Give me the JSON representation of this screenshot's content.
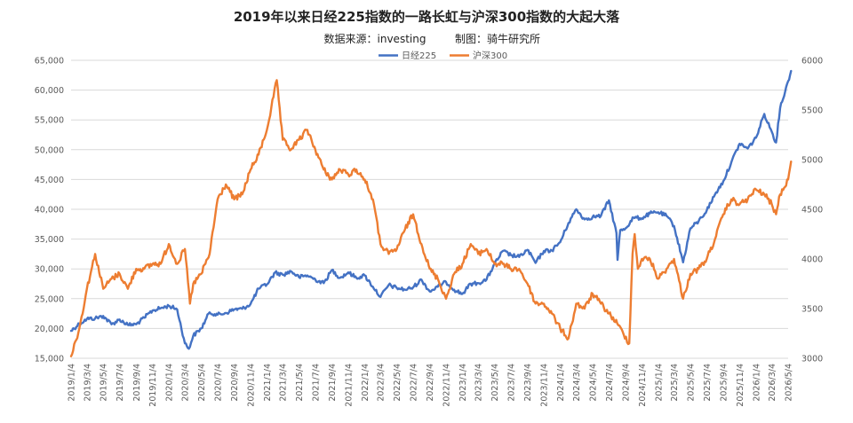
{
  "chart_data": {
    "type": "line",
    "title": "2019年以来日经225指数的一路长虹与沪深300指数的大起大落",
    "subtitle_source": "数据来源：investing",
    "subtitle_credit": "制图：骑牛研究所",
    "legend_position": "top",
    "grid": true,
    "y_left": {
      "min": 15000,
      "max": 65000,
      "ticks": [
        15000,
        20000,
        25000,
        30000,
        35000,
        40000,
        45000,
        50000,
        55000,
        60000,
        65000
      ],
      "tick_labels": [
        "15,000",
        "20,000",
        "25,000",
        "30,000",
        "35,000",
        "40,000",
        "45,000",
        "50,000",
        "55,000",
        "60,000",
        "65,000"
      ]
    },
    "y_right": {
      "min": 3000,
      "max": 6000,
      "ticks": [
        3000,
        3500,
        4000,
        4500,
        5000,
        5500,
        6000
      ],
      "tick_labels": [
        "3000",
        "3500",
        "4000",
        "4500",
        "5000",
        "5500",
        "6000"
      ]
    },
    "x_labels": [
      "2019/1/4",
      "2019/3/4",
      "2019/5/4",
      "2019/7/4",
      "2019/9/4",
      "2019/11/4",
      "2020/1/4",
      "2020/3/4",
      "2020/5/4",
      "2020/7/4",
      "2020/9/4",
      "2020/11/4",
      "2021/1/4",
      "2021/3/4",
      "2021/5/4",
      "2021/7/4",
      "2021/9/4",
      "2021/11/4",
      "2022/1/4",
      "2022/3/4",
      "2022/5/4",
      "2022/7/4",
      "2022/9/4",
      "2022/11/4",
      "2023/1/4",
      "2023/3/4",
      "2023/5/4",
      "2023/7/4",
      "2023/9/4",
      "2023/11/4",
      "2024/1/4",
      "2024/3/4",
      "2024/5/4",
      "2024/7/4",
      "2024/9/4",
      "2024/11/4",
      "2025/1/4",
      "2025/3/4",
      "2025/5/4",
      "2025/7/4",
      "2025/9/4",
      "2025/11/4",
      "2026/1/4",
      "2026/3/4",
      "2026/5/4"
    ],
    "series": [
      {
        "name": "日经225",
        "axis": "left",
        "color": "#4472C4",
        "points": [
          [
            "2019/1/4",
            19600
          ],
          [
            "2019/2/4",
            20800
          ],
          [
            "2019/3/4",
            21600
          ],
          [
            "2019/4/4",
            21700
          ],
          [
            "2019/5/4",
            22100
          ],
          [
            "2019/6/4",
            20700
          ],
          [
            "2019/7/4",
            21500
          ],
          [
            "2019/8/4",
            20600
          ],
          [
            "2019/9/4",
            20700
          ],
          [
            "2019/10/4",
            21800
          ],
          [
            "2019/11/4",
            23000
          ],
          [
            "2019/12/4",
            23400
          ],
          [
            "2020/1/4",
            23800
          ],
          [
            "2020/2/4",
            23200
          ],
          [
            "2020/3/4",
            17500
          ],
          [
            "2020/3/19",
            16600
          ],
          [
            "2020/4/4",
            18800
          ],
          [
            "2020/5/4",
            20000
          ],
          [
            "2020/6/4",
            22700
          ],
          [
            "2020/7/4",
            22300
          ],
          [
            "2020/8/4",
            22600
          ],
          [
            "2020/9/4",
            23200
          ],
          [
            "2020/10/4",
            23300
          ],
          [
            "2020/11/4",
            24100
          ],
          [
            "2020/12/4",
            26700
          ],
          [
            "2021/1/4",
            27400
          ],
          [
            "2021/2/4",
            29400
          ],
          [
            "2021/3/4",
            29000
          ],
          [
            "2021/4/4",
            29600
          ],
          [
            "2021/5/4",
            28600
          ],
          [
            "2021/6/4",
            28900
          ],
          [
            "2021/7/4",
            28200
          ],
          [
            "2021/8/4",
            27600
          ],
          [
            "2021/9/4",
            29800
          ],
          [
            "2021/10/4",
            28500
          ],
          [
            "2021/11/4",
            29400
          ],
          [
            "2021/12/4",
            28500
          ],
          [
            "2022/1/4",
            28900
          ],
          [
            "2022/2/4",
            27000
          ],
          [
            "2022/3/4",
            25300
          ],
          [
            "2022/4/4",
            27300
          ],
          [
            "2022/5/4",
            26800
          ],
          [
            "2022/6/4",
            26500
          ],
          [
            "2022/7/4",
            26900
          ],
          [
            "2022/8/4",
            28200
          ],
          [
            "2022/9/4",
            26200
          ],
          [
            "2022/10/4",
            27000
          ],
          [
            "2022/11/4",
            27800
          ],
          [
            "2022/12/4",
            26500
          ],
          [
            "2023/1/4",
            25800
          ],
          [
            "2023/2/4",
            27500
          ],
          [
            "2023/3/4",
            27600
          ],
          [
            "2023/4/4",
            28200
          ],
          [
            "2023/5/4",
            30800
          ],
          [
            "2023/6/4",
            33000
          ],
          [
            "2023/7/4",
            32300
          ],
          [
            "2023/8/4",
            32000
          ],
          [
            "2023/9/4",
            33200
          ],
          [
            "2023/10/4",
            31000
          ],
          [
            "2023/11/4",
            33000
          ],
          [
            "2023/12/4",
            33100
          ],
          [
            "2024/1/4",
            34500
          ],
          [
            "2024/2/4",
            37700
          ],
          [
            "2024/3/4",
            40000
          ],
          [
            "2024/4/4",
            38300
          ],
          [
            "2024/5/4",
            38700
          ],
          [
            "2024/6/4",
            38900
          ],
          [
            "2024/7/4",
            41500
          ],
          [
            "2024/8/1",
            36000
          ],
          [
            "2024/8/5",
            31500
          ],
          [
            "2024/8/15",
            36500
          ],
          [
            "2024/9/4",
            36800
          ],
          [
            "2024/10/4",
            38600
          ],
          [
            "2024/11/4",
            38500
          ],
          [
            "2024/12/4",
            39300
          ],
          [
            "2025/1/4",
            39500
          ],
          [
            "2025/2/4",
            38900
          ],
          [
            "2025/3/4",
            37200
          ],
          [
            "2025/4/7",
            31100
          ],
          [
            "2025/5/4",
            36800
          ],
          [
            "2025/6/4",
            38000
          ],
          [
            "2025/7/4",
            39800
          ],
          [
            "2025/8/4",
            42500
          ],
          [
            "2025/9/4",
            44700
          ],
          [
            "2025/10/4",
            47900
          ],
          [
            "2025/11/4",
            51000
          ],
          [
            "2025/12/4",
            50200
          ],
          [
            "2026/1/4",
            52000
          ],
          [
            "2026/2/4",
            56000
          ],
          [
            "2026/3/4",
            53000
          ],
          [
            "2026/3/20",
            51200
          ],
          [
            "2026/4/4",
            57000
          ],
          [
            "2026/5/4",
            61500
          ],
          [
            "2026/5/15",
            63200
          ]
        ]
      },
      {
        "name": "沪深300",
        "axis": "right",
        "color": "#ED7D31",
        "points": [
          [
            "2019/1/4",
            3020
          ],
          [
            "2019/2/4",
            3300
          ],
          [
            "2019/3/4",
            3700
          ],
          [
            "2019/4/4",
            4050
          ],
          [
            "2019/5/4",
            3700
          ],
          [
            "2019/6/4",
            3800
          ],
          [
            "2019/7/4",
            3850
          ],
          [
            "2019/8/4",
            3700
          ],
          [
            "2019/9/4",
            3900
          ],
          [
            "2019/10/4",
            3900
          ],
          [
            "2019/11/4",
            3950
          ],
          [
            "2019/12/4",
            3950
          ],
          [
            "2020/1/4",
            4150
          ],
          [
            "2020/2/4",
            3950
          ],
          [
            "2020/3/4",
            4100
          ],
          [
            "2020/3/23",
            3550
          ],
          [
            "2020/4/4",
            3750
          ],
          [
            "2020/5/4",
            3850
          ],
          [
            "2020/6/4",
            4050
          ],
          [
            "2020/7/4",
            4600
          ],
          [
            "2020/8/4",
            4750
          ],
          [
            "2020/9/4",
            4600
          ],
          [
            "2020/10/4",
            4650
          ],
          [
            "2020/11/4",
            4900
          ],
          [
            "2020/12/4",
            5050
          ],
          [
            "2021/1/4",
            5300
          ],
          [
            "2021/2/10",
            5800
          ],
          [
            "2021/3/4",
            5200
          ],
          [
            "2021/4/4",
            5100
          ],
          [
            "2021/5/4",
            5200
          ],
          [
            "2021/6/4",
            5300
          ],
          [
            "2021/7/4",
            5100
          ],
          [
            "2021/8/4",
            4900
          ],
          [
            "2021/9/4",
            4800
          ],
          [
            "2021/10/4",
            4900
          ],
          [
            "2021/11/4",
            4850
          ],
          [
            "2021/12/4",
            4900
          ],
          [
            "2022/1/4",
            4800
          ],
          [
            "2022/2/4",
            4600
          ],
          [
            "2022/3/4",
            4150
          ],
          [
            "2022/4/4",
            4050
          ],
          [
            "2022/5/4",
            4100
          ],
          [
            "2022/6/4",
            4300
          ],
          [
            "2022/7/4",
            4450
          ],
          [
            "2022/8/4",
            4150
          ],
          [
            "2022/9/4",
            3900
          ],
          [
            "2022/10/4",
            3800
          ],
          [
            "2022/11/4",
            3600
          ],
          [
            "2022/12/4",
            3850
          ],
          [
            "2023/1/4",
            3950
          ],
          [
            "2023/2/4",
            4150
          ],
          [
            "2023/3/4",
            4050
          ],
          [
            "2023/4/4",
            4100
          ],
          [
            "2023/5/4",
            3950
          ],
          [
            "2023/6/4",
            3950
          ],
          [
            "2023/7/4",
            3900
          ],
          [
            "2023/8/4",
            3900
          ],
          [
            "2023/9/4",
            3750
          ],
          [
            "2023/10/4",
            3550
          ],
          [
            "2023/11/4",
            3550
          ],
          [
            "2023/12/4",
            3450
          ],
          [
            "2024/1/4",
            3300
          ],
          [
            "2024/2/4",
            3200
          ],
          [
            "2024/3/4",
            3550
          ],
          [
            "2024/4/4",
            3500
          ],
          [
            "2024/5/4",
            3650
          ],
          [
            "2024/6/4",
            3550
          ],
          [
            "2024/7/4",
            3450
          ],
          [
            "2024/8/4",
            3350
          ],
          [
            "2024/9/18",
            3150
          ],
          [
            "2024/9/30",
            4050
          ],
          [
            "2024/10/8",
            4250
          ],
          [
            "2024/10/20",
            3900
          ],
          [
            "2024/11/4",
            4000
          ],
          [
            "2024/12/4",
            4000
          ],
          [
            "2025/1/4",
            3800
          ],
          [
            "2025/2/4",
            3900
          ],
          [
            "2025/3/4",
            4000
          ],
          [
            "2025/4/7",
            3600
          ],
          [
            "2025/5/4",
            3850
          ],
          [
            "2025/6/4",
            3900
          ],
          [
            "2025/7/4",
            4000
          ],
          [
            "2025/8/4",
            4200
          ],
          [
            "2025/9/4",
            4450
          ],
          [
            "2025/10/4",
            4600
          ],
          [
            "2025/11/4",
            4550
          ],
          [
            "2025/12/4",
            4600
          ],
          [
            "2026/1/4",
            4700
          ],
          [
            "2026/2/4",
            4650
          ],
          [
            "2026/3/4",
            4550
          ],
          [
            "2026/3/20",
            4450
          ],
          [
            "2026/4/4",
            4650
          ],
          [
            "2026/5/4",
            4800
          ],
          [
            "2026/5/15",
            4980
          ]
        ]
      }
    ]
  }
}
